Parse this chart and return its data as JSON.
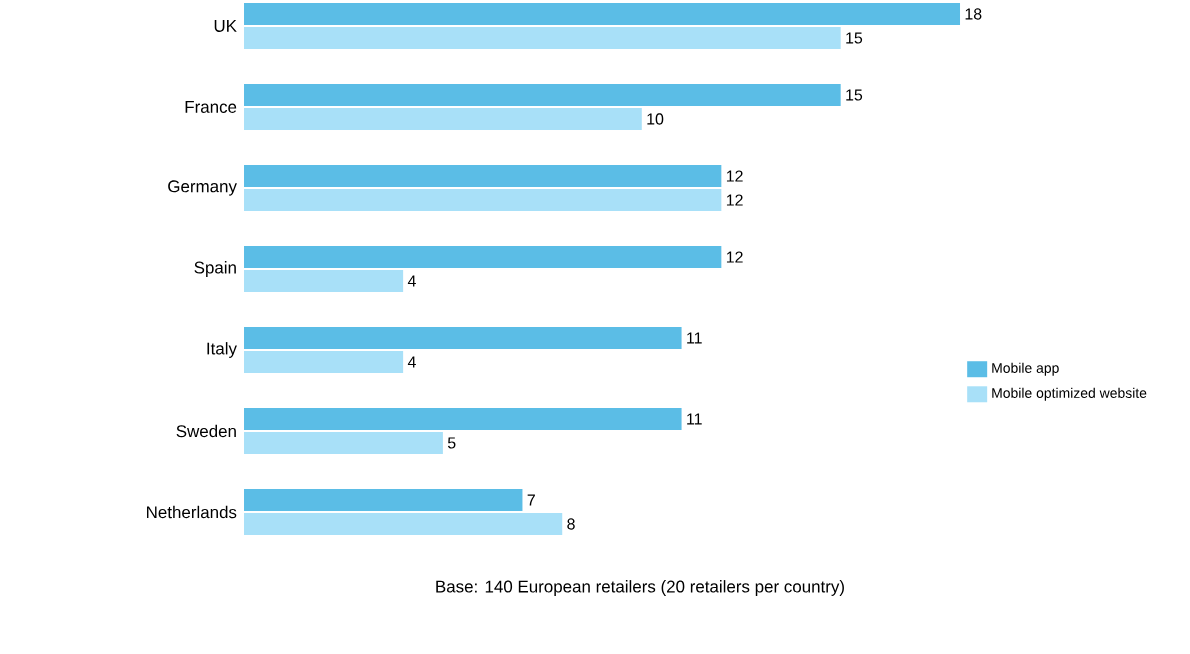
{
  "chart_data": {
    "type": "bar",
    "orientation": "horizontal",
    "categories": [
      "UK",
      "France",
      "Germany",
      "Spain",
      "Italy",
      "Sweden",
      "Netherlands"
    ],
    "series": [
      {
        "name": "Mobile app",
        "color": "#5bbde6",
        "values": [
          18,
          15,
          12,
          12,
          11,
          11,
          7
        ]
      },
      {
        "name": "Mobile optimized website",
        "color": "#a8e0f8",
        "values": [
          15,
          10,
          12,
          4,
          4,
          5,
          8
        ]
      }
    ],
    "data_labels": true,
    "legend": "right",
    "annotations": [
      "Base: 140 European retailers (20 retailers per country)"
    ]
  }
}
